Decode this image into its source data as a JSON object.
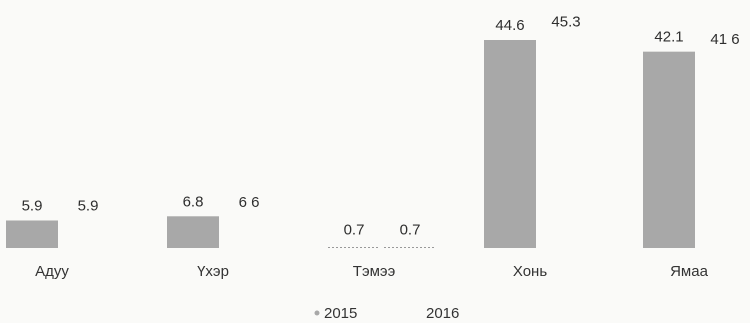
{
  "chart_data": {
    "type": "bar",
    "categories": [
      "Адуу",
      "Үхэр",
      "Тэмээ",
      "Хонь",
      "Ямаа"
    ],
    "series": [
      {
        "name": "2015",
        "values": [
          5.9,
          6.8,
          0.7,
          44.6,
          42.1
        ],
        "color": "#a8a8a8"
      },
      {
        "name": "2016",
        "values": [
          5.9,
          6.6,
          0.7,
          45.3,
          41.6
        ],
        "color": "#fafaf8"
      }
    ],
    "value_labels": [
      [
        "5.9",
        "6.8",
        "0.7",
        "44.6",
        "42.1"
      ],
      [
        "5.9",
        "6 6",
        "0.7",
        "45.3",
        "41 6"
      ]
    ],
    "ylim": [
      0,
      48
    ],
    "grid": false,
    "legend_position": "bottom"
  }
}
